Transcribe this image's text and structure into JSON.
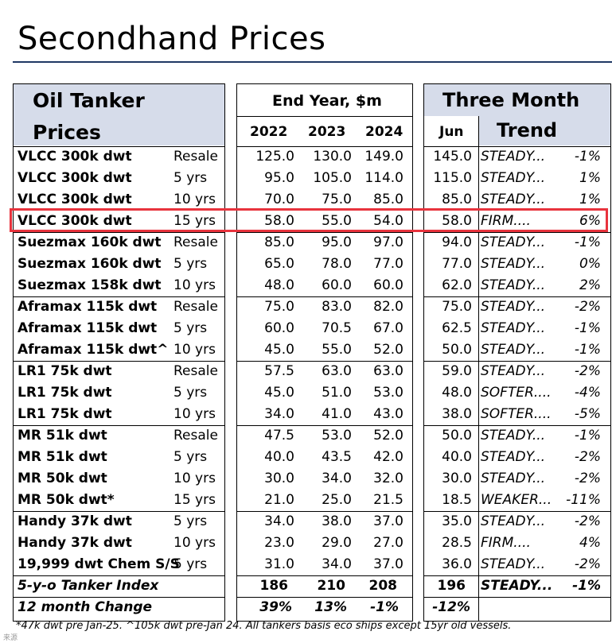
{
  "title": "Secondhand Prices",
  "header": {
    "panel1_line1": "Oil Tanker",
    "panel1_line2": "Prices",
    "panel2_title": "End Year, $m",
    "years": [
      "2022",
      "2023",
      "2024"
    ],
    "panel3_title": "Three Month",
    "month": "Jun",
    "trend": "Trend"
  },
  "rows": [
    {
      "name": "VLCC 300k dwt",
      "age": "Resale",
      "y2022": "125.0",
      "y2023": "130.0",
      "y2024": "149.0",
      "jun": "145.0",
      "trend": "STEADY...",
      "pct": "-1%"
    },
    {
      "name": "VLCC 300k dwt",
      "age": "5 yrs",
      "y2022": "95.0",
      "y2023": "105.0",
      "y2024": "114.0",
      "jun": "115.0",
      "trend": "STEADY...",
      "pct": "1%"
    },
    {
      "name": "VLCC 300k dwt",
      "age": "10 yrs",
      "y2022": "70.0",
      "y2023": "75.0",
      "y2024": "85.0",
      "jun": "85.0",
      "trend": "STEADY...",
      "pct": "1%"
    },
    {
      "name": "VLCC 300k dwt",
      "age": "15 yrs",
      "y2022": "58.0",
      "y2023": "55.0",
      "y2024": "54.0",
      "jun": "58.0",
      "trend": "FIRM....",
      "pct": "6%"
    },
    {
      "name": "Suezmax 160k dwt",
      "age": "Resale",
      "y2022": "85.0",
      "y2023": "95.0",
      "y2024": "97.0",
      "jun": "94.0",
      "trend": "STEADY...",
      "pct": "-1%"
    },
    {
      "name": "Suezmax 160k dwt",
      "age": "5 yrs",
      "y2022": "65.0",
      "y2023": "78.0",
      "y2024": "77.0",
      "jun": "77.0",
      "trend": "STEADY...",
      "pct": "0%"
    },
    {
      "name": "Suezmax 158k dwt",
      "age": "10 yrs",
      "y2022": "48.0",
      "y2023": "60.0",
      "y2024": "60.0",
      "jun": "62.0",
      "trend": "STEADY...",
      "pct": "2%"
    },
    {
      "name": "Aframax 115k dwt",
      "age": "Resale",
      "y2022": "75.0",
      "y2023": "83.0",
      "y2024": "82.0",
      "jun": "75.0",
      "trend": "STEADY...",
      "pct": "-2%"
    },
    {
      "name": "Aframax 115k dwt",
      "age": "5 yrs",
      "y2022": "60.0",
      "y2023": "70.5",
      "y2024": "67.0",
      "jun": "62.5",
      "trend": "STEADY...",
      "pct": "-1%"
    },
    {
      "name": "Aframax 115k dwt^",
      "age": "10 yrs",
      "y2022": "45.0",
      "y2023": "55.0",
      "y2024": "52.0",
      "jun": "50.0",
      "trend": "STEADY...",
      "pct": "-1%"
    },
    {
      "name": "LR1 75k dwt",
      "age": "Resale",
      "y2022": "57.5",
      "y2023": "63.0",
      "y2024": "63.0",
      "jun": "59.0",
      "trend": "STEADY...",
      "pct": "-2%"
    },
    {
      "name": "LR1 75k dwt",
      "age": "5 yrs",
      "y2022": "45.0",
      "y2023": "51.0",
      "y2024": "53.0",
      "jun": "48.0",
      "trend": "SOFTER....",
      "pct": "-4%"
    },
    {
      "name": "LR1 75k dwt",
      "age": "10 yrs",
      "y2022": "34.0",
      "y2023": "41.0",
      "y2024": "43.0",
      "jun": "38.0",
      "trend": "SOFTER....",
      "pct": "-5%"
    },
    {
      "name": "MR 51k dwt",
      "age": "Resale",
      "y2022": "47.5",
      "y2023": "53.0",
      "y2024": "52.0",
      "jun": "50.0",
      "trend": "STEADY...",
      "pct": "-1%"
    },
    {
      "name": "MR 51k dwt",
      "age": "5 yrs",
      "y2022": "40.0",
      "y2023": "43.5",
      "y2024": "42.0",
      "jun": "40.0",
      "trend": "STEADY...",
      "pct": "-2%"
    },
    {
      "name": "MR 50k dwt",
      "age": "10 yrs",
      "y2022": "30.0",
      "y2023": "34.0",
      "y2024": "32.0",
      "jun": "30.0",
      "trend": "STEADY...",
      "pct": "-2%"
    },
    {
      "name": "MR 50k dwt*",
      "age": "15 yrs",
      "y2022": "21.0",
      "y2023": "25.0",
      "y2024": "21.5",
      "jun": "18.5",
      "trend": "WEAKER...",
      "pct": "-11%"
    },
    {
      "name": "Handy 37k dwt",
      "age": "5 yrs",
      "y2022": "34.0",
      "y2023": "38.0",
      "y2024": "37.0",
      "jun": "35.0",
      "trend": "STEADY...",
      "pct": "-2%"
    },
    {
      "name": "Handy 37k dwt",
      "age": "10 yrs",
      "y2022": "23.0",
      "y2023": "29.0",
      "y2024": "27.0",
      "jun": "28.5",
      "trend": "FIRM....",
      "pct": "4%"
    },
    {
      "name": "19,999 dwt Chem S/S",
      "age": "5 yrs",
      "y2022": "31.0",
      "y2023": "34.0",
      "y2024": "37.0",
      "jun": "36.0",
      "trend": "STEADY...",
      "pct": "-2%"
    }
  ],
  "index_row": {
    "name": "5-y-o Tanker Index",
    "y2022": "186",
    "y2023": "210",
    "y2024": "208",
    "jun": "196",
    "trend": "STEADY...",
    "pct": "-1%"
  },
  "change_row": {
    "name": "12 month Change",
    "y2022": "39%",
    "y2023": "13%",
    "y2024": "-1%",
    "jun": "-12%"
  },
  "footnote": "*47k dwt pre Jan-25. ^105k dwt pre-Jan 24. All tankers basis eco ships except 15yr old vessels.",
  "watermark": "来源",
  "colors": {
    "header_bg": "#d6dcea",
    "highlight": "#e8333d",
    "title_rule": "#1f3864"
  }
}
